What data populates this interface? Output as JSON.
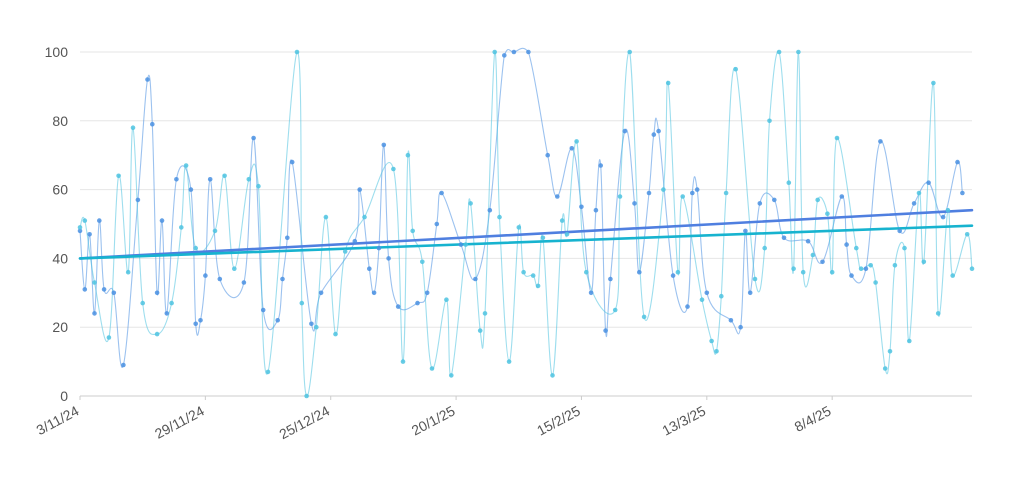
{
  "chart_data": {
    "type": "line",
    "xlim": [
      "2024-11-03",
      "2025-05-07"
    ],
    "ylim": [
      0,
      100
    ],
    "y_ticks": [
      0,
      20,
      40,
      60,
      80,
      100
    ],
    "x_ticks": [
      {
        "date": "2024-11-03",
        "label": "3/11/24"
      },
      {
        "date": "2024-11-29",
        "label": "29/11/24"
      },
      {
        "date": "2024-12-25",
        "label": "25/12/24"
      },
      {
        "date": "2025-01-20",
        "label": "20/1/25"
      },
      {
        "date": "2025-02-15",
        "label": "15/2/25"
      },
      {
        "date": "2025-03-13",
        "label": "13/3/25"
      },
      {
        "date": "2025-04-08",
        "label": "8/4/25"
      }
    ],
    "grid": true,
    "colors": {
      "series_a": "#4a90e2",
      "series_b": "#4ec3e0",
      "trend_a": "#4f7fe0",
      "trend_b": "#17b3cf",
      "grid": "#e6e6e6",
      "text": "#555555"
    },
    "series": [
      {
        "color_key": "series_a",
        "x": [
          "2024-11-03",
          "2024-11-04",
          "2024-11-05",
          "2024-11-06",
          "2024-11-07",
          "2024-11-08",
          "2024-11-10",
          "2024-11-12",
          "2024-11-15",
          "2024-11-17",
          "2024-11-18",
          "2024-11-19",
          "2024-11-20",
          "2024-11-21",
          "2024-11-23",
          "2024-11-26",
          "2024-11-27",
          "2024-11-28",
          "2024-11-29",
          "2024-11-30",
          "2024-12-02",
          "2024-12-07",
          "2024-12-09",
          "2024-12-11",
          "2024-12-14",
          "2024-12-15",
          "2024-12-16",
          "2024-12-17",
          "2024-12-21",
          "2024-12-23",
          "2024-12-30",
          "2024-12-31",
          "2025-01-02",
          "2025-01-03",
          "2025-01-04",
          "2025-01-05",
          "2025-01-06",
          "2025-01-08",
          "2025-01-12",
          "2025-01-14",
          "2025-01-16",
          "2025-01-17",
          "2025-01-21",
          "2025-01-24",
          "2025-01-27",
          "2025-01-30",
          "2025-02-01",
          "2025-02-04",
          "2025-02-08",
          "2025-02-10",
          "2025-02-13",
          "2025-02-15",
          "2025-02-17",
          "2025-02-18",
          "2025-02-19",
          "2025-02-20",
          "2025-02-21",
          "2025-02-24",
          "2025-02-26",
          "2025-02-27",
          "2025-03-01",
          "2025-03-02",
          "2025-03-03",
          "2025-03-06",
          "2025-03-09",
          "2025-03-10",
          "2025-03-11",
          "2025-03-13",
          "2025-03-18",
          "2025-03-20",
          "2025-03-21",
          "2025-03-22",
          "2025-03-24",
          "2025-03-27",
          "2025-03-29",
          "2025-04-03",
          "2025-04-06",
          "2025-04-10",
          "2025-04-11",
          "2025-04-12",
          "2025-04-15",
          "2025-04-18",
          "2025-04-22",
          "2025-04-25",
          "2025-04-28",
          "2025-05-01",
          "2025-05-04",
          "2025-05-05"
        ],
        "values": [
          48,
          31,
          47,
          24,
          51,
          31,
          30,
          9,
          57,
          92,
          79,
          30,
          51,
          24,
          63,
          60,
          21,
          22,
          35,
          63,
          34,
          33,
          75,
          25,
          22,
          34,
          46,
          68,
          21,
          30,
          45,
          60,
          37,
          30,
          43,
          73,
          40,
          26,
          27,
          30,
          50,
          59,
          44,
          34,
          54,
          99,
          100,
          100,
          70,
          58,
          72,
          55,
          30,
          54,
          67,
          19,
          34,
          77,
          56,
          36,
          59,
          76,
          77,
          35,
          26,
          59,
          60,
          30,
          22,
          20,
          48,
          30,
          56,
          57,
          46,
          45,
          39,
          58,
          44,
          35,
          37,
          74,
          48,
          56,
          62,
          52,
          68,
          59
        ]
      },
      {
        "color_key": "series_b",
        "x": [
          "2024-11-03",
          "2024-11-04",
          "2024-11-06",
          "2024-11-09",
          "2024-11-11",
          "2024-11-13",
          "2024-11-14",
          "2024-11-16",
          "2024-11-19",
          "2024-11-22",
          "2024-11-24",
          "2024-11-25",
          "2024-11-27",
          "2024-12-01",
          "2024-12-03",
          "2024-12-05",
          "2024-12-08",
          "2024-12-10",
          "2024-12-12",
          "2024-12-18",
          "2024-12-19",
          "2024-12-20",
          "2024-12-22",
          "2024-12-24",
          "2024-12-26",
          "2024-12-28",
          "2025-01-01",
          "2025-01-07",
          "2025-01-09",
          "2025-01-10",
          "2025-01-11",
          "2025-01-13",
          "2025-01-15",
          "2025-01-18",
          "2025-01-19",
          "2025-01-22",
          "2025-01-23",
          "2025-01-25",
          "2025-01-26",
          "2025-01-28",
          "2025-01-29",
          "2025-01-31",
          "2025-02-02",
          "2025-02-03",
          "2025-02-05",
          "2025-02-06",
          "2025-02-07",
          "2025-02-09",
          "2025-02-11",
          "2025-02-12",
          "2025-02-14",
          "2025-02-16",
          "2025-02-22",
          "2025-02-23",
          "2025-02-25",
          "2025-02-28",
          "2025-03-04",
          "2025-03-05",
          "2025-03-07",
          "2025-03-08",
          "2025-03-12",
          "2025-03-14",
          "2025-03-15",
          "2025-03-16",
          "2025-03-17",
          "2025-03-19",
          "2025-03-23",
          "2025-03-25",
          "2025-03-26",
          "2025-03-28",
          "2025-03-30",
          "2025-03-31",
          "2025-04-01",
          "2025-04-02",
          "2025-04-04",
          "2025-04-05",
          "2025-04-07",
          "2025-04-08",
          "2025-04-09",
          "2025-04-13",
          "2025-04-14",
          "2025-04-16",
          "2025-04-17",
          "2025-04-19",
          "2025-04-20",
          "2025-04-21",
          "2025-04-23",
          "2025-04-24",
          "2025-04-26",
          "2025-04-27",
          "2025-04-29",
          "2025-04-30",
          "2025-05-02",
          "2025-05-03",
          "2025-05-06",
          "2025-05-07"
        ],
        "values": [
          49,
          51,
          33,
          17,
          64,
          36,
          78,
          27,
          18,
          27,
          49,
          67,
          43,
          48,
          64,
          37,
          63,
          61,
          7,
          100,
          27,
          0,
          20,
          52,
          18,
          42,
          52,
          66,
          10,
          70,
          48,
          39,
          8,
          28,
          6,
          44,
          56,
          19,
          24,
          100,
          52,
          10,
          49,
          36,
          35,
          32,
          46,
          6,
          51,
          47,
          74,
          36,
          25,
          58,
          100,
          23,
          60,
          91,
          36,
          58,
          28,
          16,
          13,
          29,
          59,
          95,
          34,
          43,
          80,
          100,
          62,
          37,
          100,
          36,
          41,
          57,
          53,
          36,
          75,
          43,
          37,
          38,
          33,
          8,
          13,
          38,
          43,
          16,
          59,
          39,
          91,
          24,
          54,
          35,
          47,
          37
        ]
      },
      {
        "color_key": "trend_a",
        "x": [
          "2024-11-03",
          "2025-05-07"
        ],
        "values": [
          40,
          54
        ]
      },
      {
        "color_key": "trend_b",
        "x": [
          "2024-11-03",
          "2025-05-07"
        ],
        "values": [
          40,
          49.5
        ]
      }
    ]
  }
}
